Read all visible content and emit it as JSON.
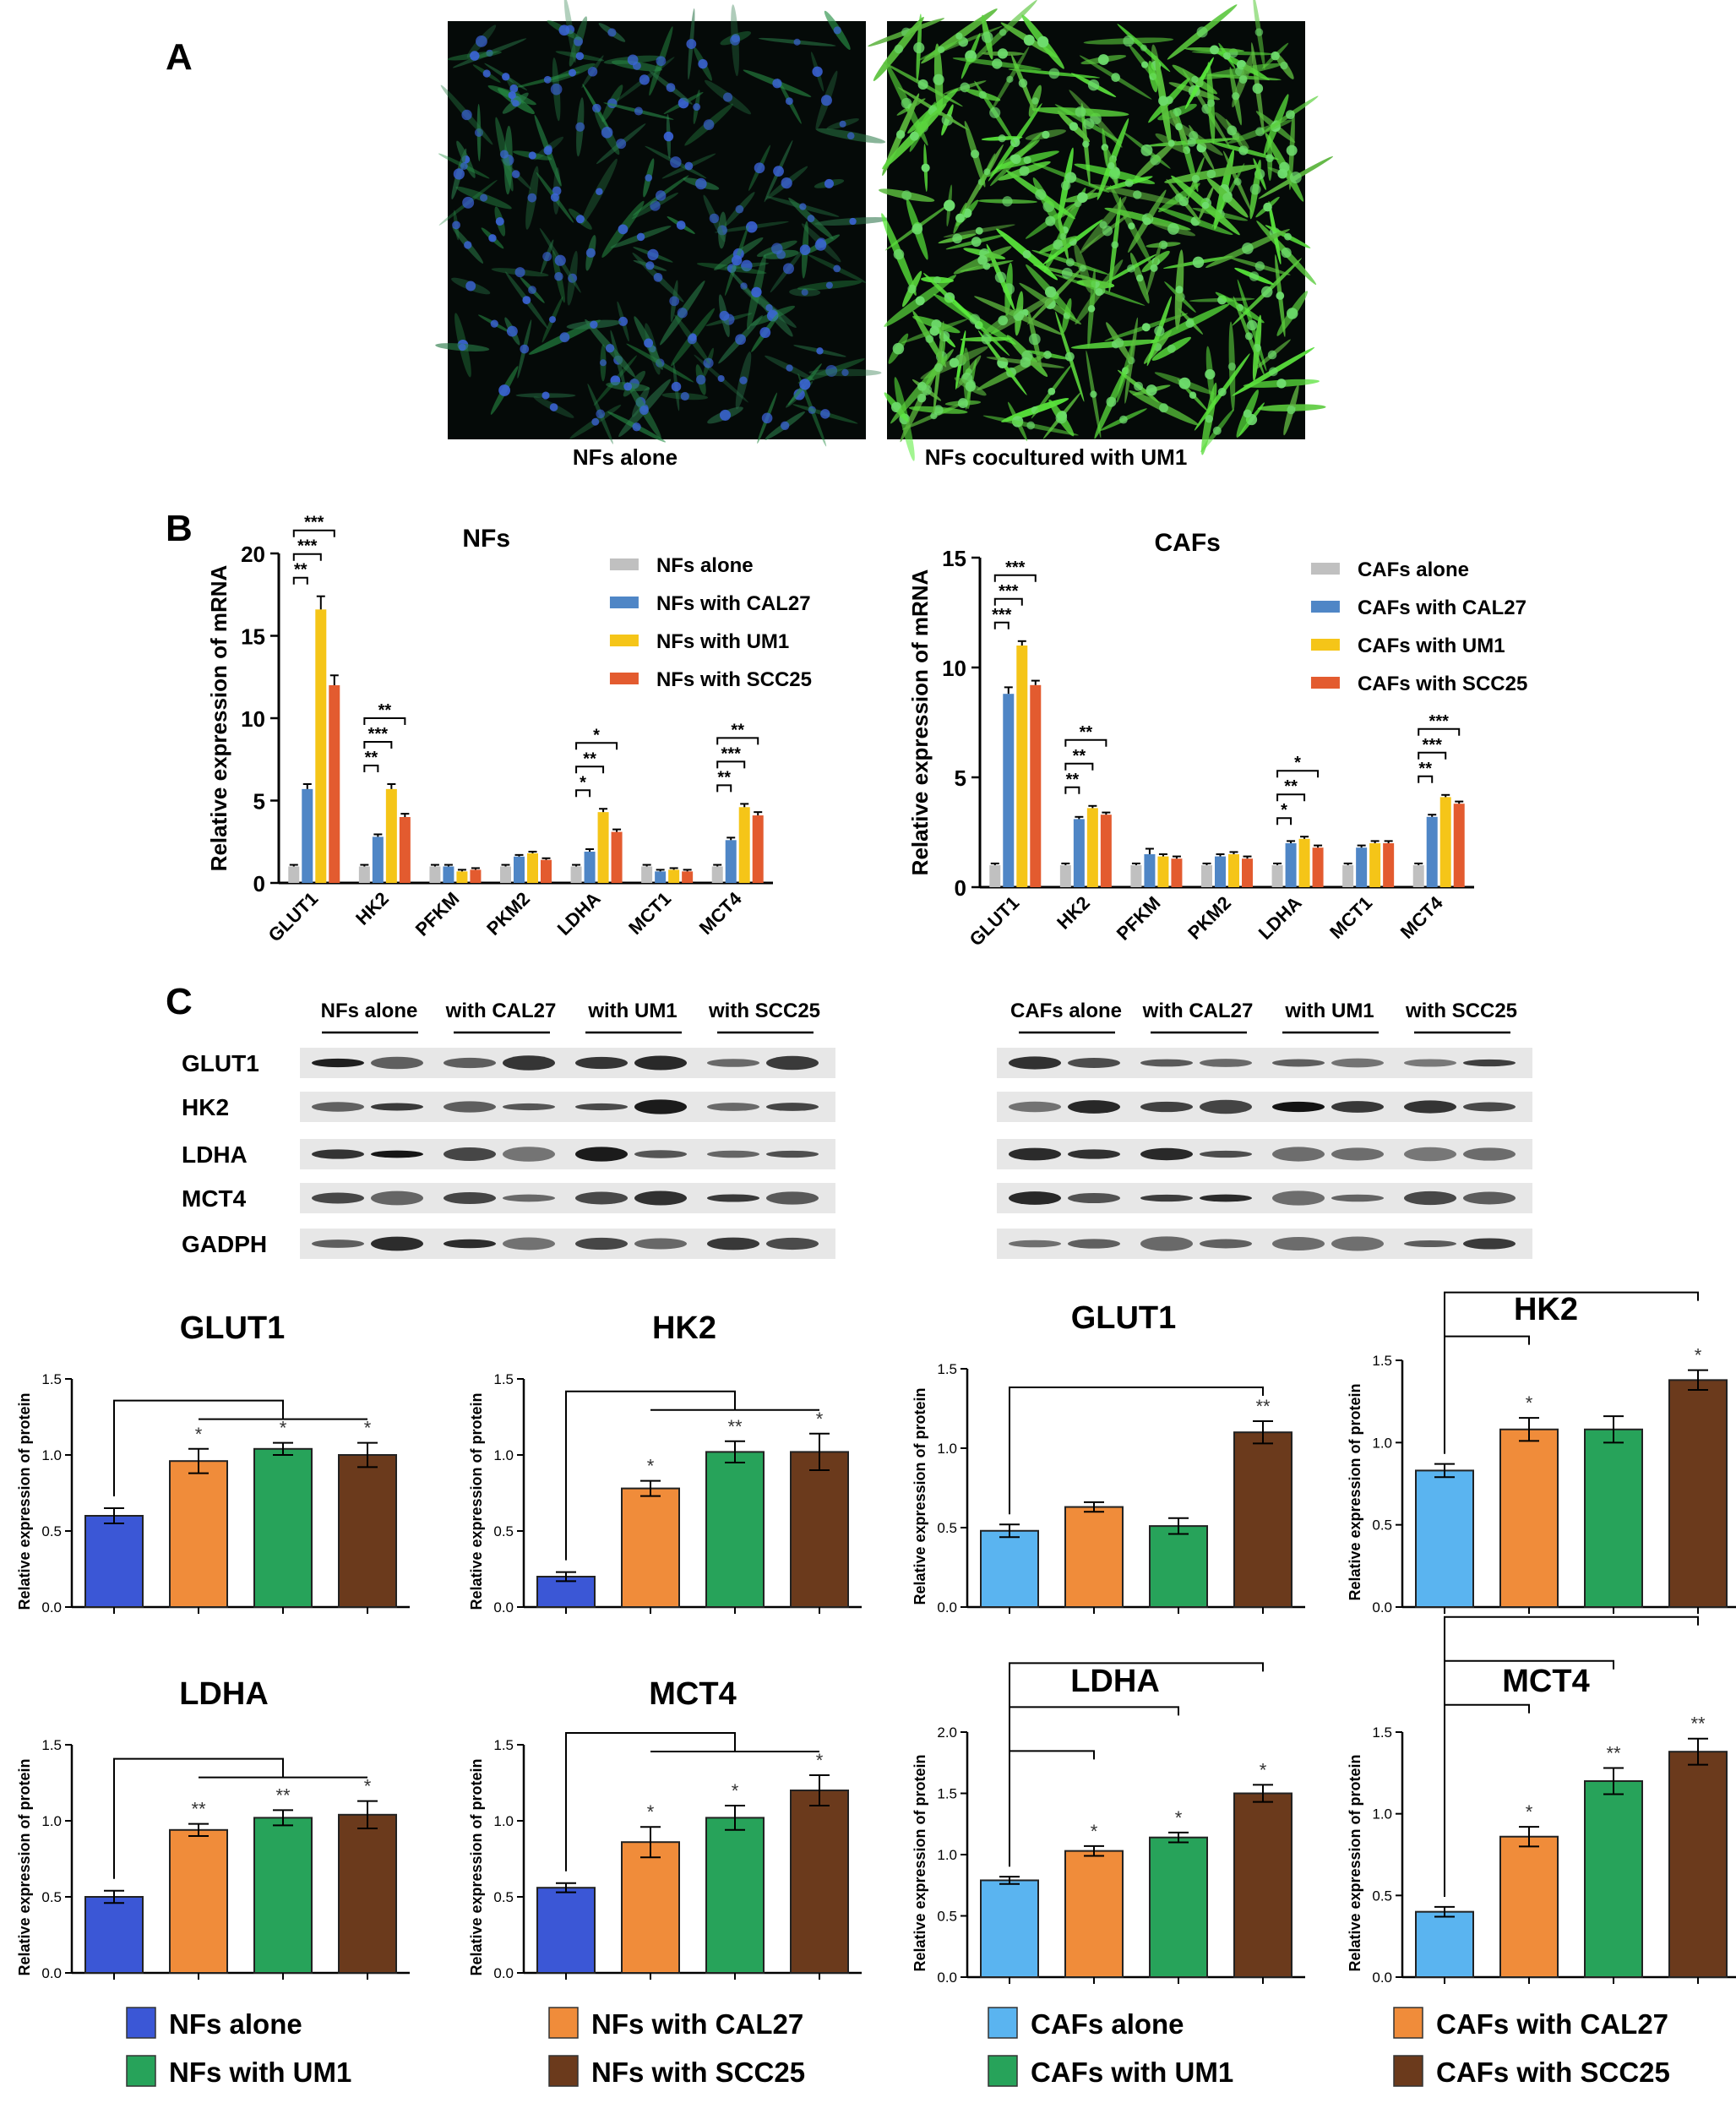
{
  "panels": {
    "A": "A",
    "B": "B",
    "C": "C"
  },
  "micrographs": {
    "left_caption": "NFs alone",
    "right_caption": "NFs cocultured with UM1"
  },
  "colors": {
    "alone_nf": "#3b57d6",
    "alone_caf": "#5ab4f0",
    "cal27": "#f08c3a",
    "um1": "#27a35a",
    "scc25": "#6b3a1c",
    "mrna_alone": "#c0c0c0",
    "mrna_cal27": "#4f86c6",
    "mrna_um1": "#f5c518",
    "mrna_scc25": "#e35b2f"
  },
  "chart_data": [
    {
      "id": "mrna_nfs",
      "type": "bar",
      "title": "NFs",
      "ylabel": "Relative expression of mRNA",
      "ylim": [
        0,
        20
      ],
      "yticks": [
        0,
        5,
        10,
        15,
        20
      ],
      "categories": [
        "GLUT1",
        "HK2",
        "PFKM",
        "PKM2",
        "LDHA",
        "MCT1",
        "MCT4"
      ],
      "series": [
        {
          "name": "NFs alone",
          "values": [
            1,
            1,
            1,
            1,
            1,
            1,
            1
          ],
          "errors": [
            0.1,
            0.1,
            0.1,
            0.1,
            0.1,
            0.1,
            0.1
          ]
        },
        {
          "name": "NFs with CAL27",
          "values": [
            5.7,
            2.8,
            1.0,
            1.6,
            1.9,
            0.7,
            2.6
          ],
          "errors": [
            0.3,
            0.15,
            0.1,
            0.1,
            0.15,
            0.1,
            0.15
          ]
        },
        {
          "name": "NFs with UM1",
          "values": [
            16.6,
            5.7,
            0.7,
            1.8,
            4.3,
            0.8,
            4.6
          ],
          "errors": [
            0.8,
            0.3,
            0.1,
            0.1,
            0.2,
            0.1,
            0.2
          ]
        },
        {
          "name": "NFs with SCC25",
          "values": [
            12.0,
            4.0,
            0.8,
            1.4,
            3.1,
            0.7,
            4.1
          ],
          "errors": [
            0.6,
            0.2,
            0.1,
            0.1,
            0.15,
            0.1,
            0.2
          ]
        }
      ],
      "sig": [
        {
          "cat": 0,
          "to": 1,
          "label": "**"
        },
        {
          "cat": 0,
          "to": 2,
          "label": "***"
        },
        {
          "cat": 0,
          "to": 3,
          "label": "***"
        },
        {
          "cat": 1,
          "to": 1,
          "label": "**"
        },
        {
          "cat": 1,
          "to": 2,
          "label": "***"
        },
        {
          "cat": 1,
          "to": 3,
          "label": "**"
        },
        {
          "cat": 4,
          "to": 1,
          "label": "*"
        },
        {
          "cat": 4,
          "to": 2,
          "label": "**"
        },
        {
          "cat": 4,
          "to": 3,
          "label": "*"
        },
        {
          "cat": 6,
          "to": 1,
          "label": "**"
        },
        {
          "cat": 6,
          "to": 2,
          "label": "***"
        },
        {
          "cat": 6,
          "to": 3,
          "label": "**"
        }
      ]
    },
    {
      "id": "mrna_cafs",
      "type": "bar",
      "title": "CAFs",
      "ylabel": "Relative expression of mRNA",
      "ylim": [
        0,
        15
      ],
      "yticks": [
        0,
        5,
        10,
        15
      ],
      "categories": [
        "GLUT1",
        "HK2",
        "PFKM",
        "PKM2",
        "LDHA",
        "MCT1",
        "MCT4"
      ],
      "series": [
        {
          "name": "CAFs alone",
          "values": [
            1,
            1,
            1,
            1,
            1,
            1,
            1
          ],
          "errors": [
            0.08,
            0.08,
            0.08,
            0.08,
            0.08,
            0.08,
            0.08
          ]
        },
        {
          "name": "CAFs with CAL27",
          "values": [
            8.8,
            3.1,
            1.5,
            1.4,
            2.0,
            1.8,
            3.2
          ],
          "errors": [
            0.3,
            0.1,
            0.25,
            0.1,
            0.1,
            0.1,
            0.1
          ]
        },
        {
          "name": "CAFs with UM1",
          "values": [
            11.0,
            3.6,
            1.4,
            1.5,
            2.2,
            2.0,
            4.1
          ],
          "errors": [
            0.2,
            0.1,
            0.1,
            0.1,
            0.1,
            0.1,
            0.1
          ]
        },
        {
          "name": "CAFs with SCC25",
          "values": [
            9.2,
            3.3,
            1.3,
            1.3,
            1.8,
            2.0,
            3.8
          ],
          "errors": [
            0.2,
            0.1,
            0.1,
            0.1,
            0.1,
            0.1,
            0.1
          ]
        }
      ],
      "sig": [
        {
          "cat": 0,
          "to": 1,
          "label": "***"
        },
        {
          "cat": 0,
          "to": 2,
          "label": "***"
        },
        {
          "cat": 0,
          "to": 3,
          "label": "***"
        },
        {
          "cat": 1,
          "to": 1,
          "label": "**"
        },
        {
          "cat": 1,
          "to": 2,
          "label": "**"
        },
        {
          "cat": 1,
          "to": 3,
          "label": "**"
        },
        {
          "cat": 4,
          "to": 1,
          "label": "*"
        },
        {
          "cat": 4,
          "to": 2,
          "label": "**"
        },
        {
          "cat": 4,
          "to": 3,
          "label": "*"
        },
        {
          "cat": 6,
          "to": 1,
          "label": "**"
        },
        {
          "cat": 6,
          "to": 2,
          "label": "***"
        },
        {
          "cat": 6,
          "to": 3,
          "label": "***"
        }
      ]
    },
    {
      "id": "nf_glut1",
      "type": "bar",
      "title": "GLUT1",
      "ylabel": "Relative expression of protein",
      "ylim": [
        0,
        1.5
      ],
      "yticks": [
        "0.0",
        "0.5",
        "1.0",
        "1.5"
      ],
      "categories": [
        "NFs alone",
        "NFs with CAL27",
        "NFs with UM1",
        "NFs with SCC25"
      ],
      "values": [
        0.6,
        0.96,
        1.04,
        1.0
      ],
      "errors": [
        0.05,
        0.08,
        0.04,
        0.08
      ],
      "stars": [
        "",
        "*",
        "*",
        "*"
      ],
      "bracket": "bar"
    },
    {
      "id": "nf_hk2",
      "type": "bar",
      "title": "HK2",
      "ylabel": "Relative expression of protein",
      "ylim": [
        0,
        1.5
      ],
      "yticks": [
        "0.0",
        "0.5",
        "1.0",
        "1.5"
      ],
      "categories": [
        "NFs alone",
        "NFs with CAL27",
        "NFs with UM1",
        "NFs with SCC25"
      ],
      "values": [
        0.2,
        0.78,
        1.02,
        1.02
      ],
      "errors": [
        0.03,
        0.05,
        0.07,
        0.12
      ],
      "stars": [
        "",
        "*",
        "**",
        "*"
      ],
      "bracket": "bar"
    },
    {
      "id": "caf_glut1",
      "type": "bar",
      "title": "GLUT1",
      "ylabel": "Relative expression of protein",
      "ylim": [
        0,
        1.5
      ],
      "yticks": [
        "0.0",
        "0.5",
        "1.0",
        "1.5"
      ],
      "categories": [
        "CAFs alone",
        "CAFs with CAL27",
        "CAFs with UM1",
        "CAFs with SCC25"
      ],
      "values": [
        0.48,
        0.63,
        0.51,
        1.1
      ],
      "errors": [
        0.04,
        0.03,
        0.05,
        0.07
      ],
      "stars": [
        "",
        "",
        "",
        "**"
      ],
      "bracket": "pairs"
    },
    {
      "id": "caf_hk2",
      "type": "bar",
      "title": "HK2",
      "ylabel": "Relative expression of protein",
      "ylim": [
        0,
        1.5
      ],
      "yticks": [
        "0.0",
        "0.5",
        "1.0",
        "1.5"
      ],
      "categories": [
        "CAFs alone",
        "CAFs with CAL27",
        "CAFs with UM1",
        "CAFs with SCC25"
      ],
      "values": [
        0.83,
        1.08,
        1.08,
        1.38
      ],
      "errors": [
        0.04,
        0.07,
        0.08,
        0.06
      ],
      "stars": [
        "",
        "*",
        "",
        "*"
      ],
      "bracket": "pairs"
    },
    {
      "id": "nf_ldha",
      "type": "bar",
      "title": "LDHA",
      "ylabel": "Relative expression of protein",
      "ylim": [
        0,
        1.5
      ],
      "yticks": [
        "0.0",
        "0.5",
        "1.0",
        "1.5"
      ],
      "categories": [
        "NFs alone",
        "NFs with CAL27",
        "NFs with UM1",
        "NFs with SCC25"
      ],
      "values": [
        0.5,
        0.94,
        1.02,
        1.04
      ],
      "errors": [
        0.04,
        0.04,
        0.05,
        0.09
      ],
      "stars": [
        "",
        "**",
        "**",
        "*"
      ],
      "bracket": "bar"
    },
    {
      "id": "nf_mct4",
      "type": "bar",
      "title": "MCT4",
      "ylabel": "Relative expression of protein",
      "ylim": [
        0,
        1.5
      ],
      "yticks": [
        "0.0",
        "0.5",
        "1.0",
        "1.5"
      ],
      "categories": [
        "NFs alone",
        "NFs with CAL27",
        "NFs with UM1",
        "NFs with SCC25"
      ],
      "values": [
        0.56,
        0.86,
        1.02,
        1.2
      ],
      "errors": [
        0.03,
        0.1,
        0.08,
        0.1
      ],
      "stars": [
        "",
        "*",
        "*",
        "*"
      ],
      "bracket": "bar"
    },
    {
      "id": "caf_ldha",
      "type": "bar",
      "title": "LDHA",
      "ylabel": "Relative expression of protein",
      "ylim": [
        0,
        2.0
      ],
      "yticks": [
        "0.0",
        "0.5",
        "1.0",
        "1.5",
        "2.0"
      ],
      "categories": [
        "CAFs alone",
        "CAFs with CAL27",
        "CAFs with UM1",
        "CAFs with SCC25"
      ],
      "values": [
        0.79,
        1.03,
        1.14,
        1.5
      ],
      "errors": [
        0.03,
        0.04,
        0.04,
        0.07
      ],
      "stars": [
        "",
        "*",
        "*",
        "*"
      ],
      "bracket": "pairs"
    },
    {
      "id": "caf_mct4",
      "type": "bar",
      "title": "MCT4",
      "ylabel": "Relative expression of protein",
      "ylim": [
        0,
        1.5
      ],
      "yticks": [
        "0.0",
        "0.5",
        "1.0",
        "1.5"
      ],
      "categories": [
        "CAFs alone",
        "CAFs with CAL27",
        "CAFs with UM1",
        "CAFs with SCC25"
      ],
      "values": [
        0.4,
        0.86,
        1.2,
        1.38
      ],
      "errors": [
        0.03,
        0.06,
        0.08,
        0.08
      ],
      "stars": [
        "",
        "*",
        "**",
        "**"
      ],
      "bracket": "pairs"
    }
  ],
  "western": {
    "nf_groups": [
      "NFs alone",
      "with CAL27",
      "with UM1",
      "with SCC25"
    ],
    "caf_groups": [
      "CAFs alone",
      "with CAL27",
      "with UM1",
      "with SCC25"
    ],
    "proteins": [
      "GLUT1",
      "HK2",
      "LDHA",
      "MCT4",
      "GADPH"
    ]
  },
  "bottom_legend": [
    {
      "label": "NFs alone",
      "color": "#3b57d6"
    },
    {
      "label": "NFs with UM1",
      "color": "#27a35a"
    },
    {
      "label": "NFs with CAL27",
      "color": "#f08c3a"
    },
    {
      "label": "NFs with SCC25",
      "color": "#6b3a1c"
    },
    {
      "label": "CAFs alone",
      "color": "#5ab4f0"
    },
    {
      "label": "CAFs with UM1",
      "color": "#27a35a"
    },
    {
      "label": "CAFs with CAL27",
      "color": "#f08c3a"
    },
    {
      "label": "CAFs with SCC25",
      "color": "#6b3a1c"
    }
  ]
}
